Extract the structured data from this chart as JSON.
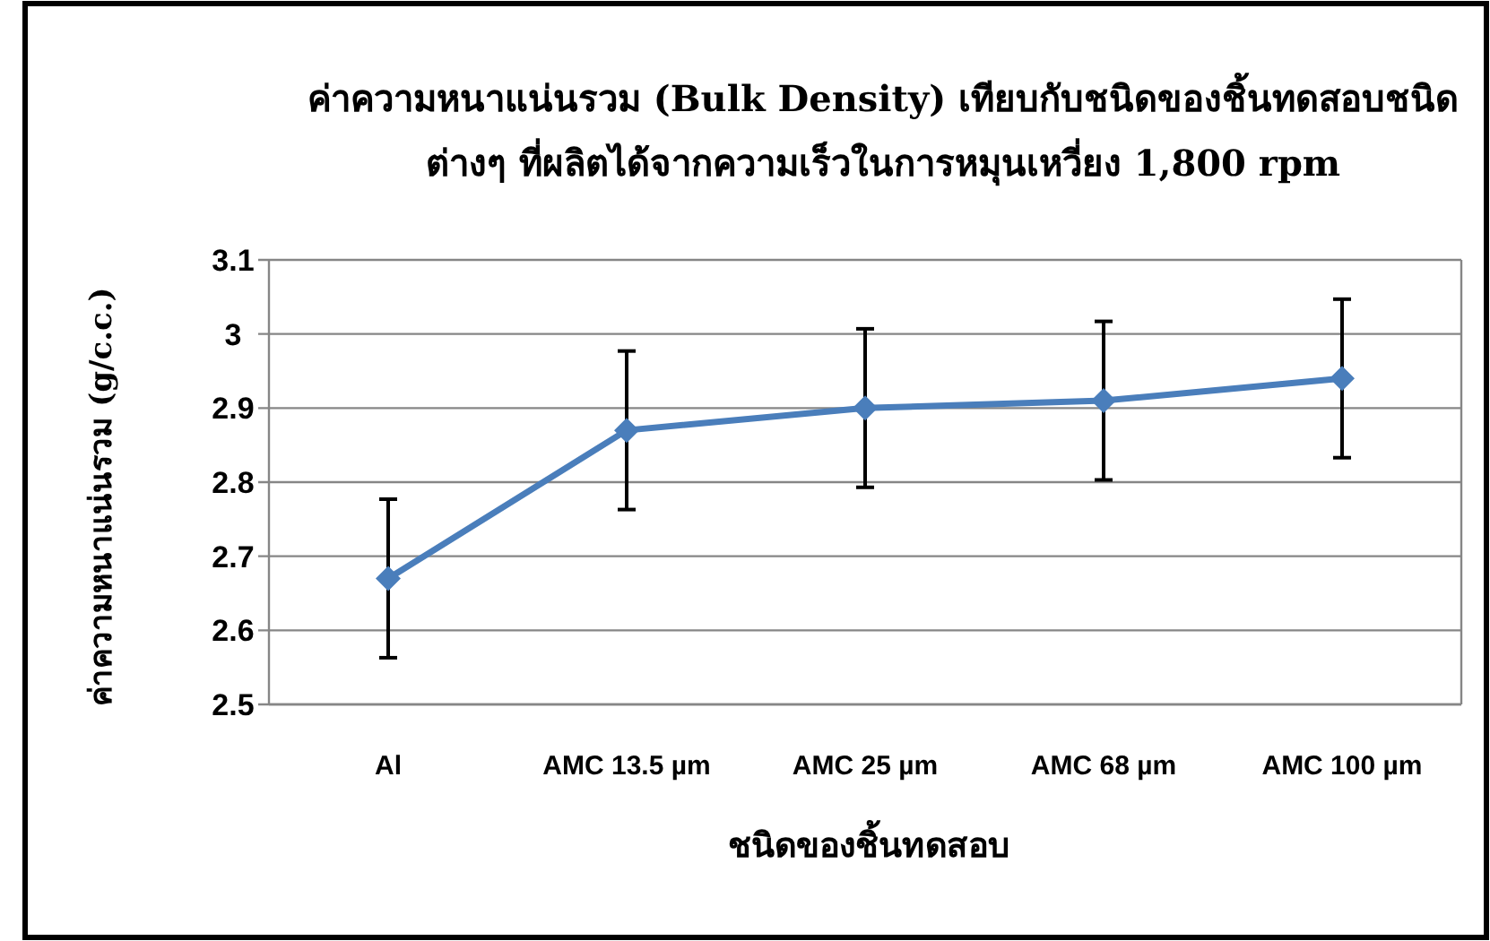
{
  "chart_data": {
    "type": "line",
    "title": "ค่าความหนาแน่นรวม (Bulk Density) เทียบกับชนิดของชิ้นทดสอบชนิด\nต่างๆ ที่ผลิตได้จากความเร็วในการหมุนเหวี่ยง 1,800 rpm",
    "xlabel": "ชนิดของชิ้นทดสอบ",
    "ylabel": "ค่าความหนาแน่นรวม (g/c.c.)",
    "categories": [
      "Al",
      "AMC 13.5 µm",
      "AMC 25 µm",
      "AMC 68 µm",
      "AMC 100 µm"
    ],
    "series": [
      {
        "color": "#4a7ebb",
        "values": [
          2.67,
          2.87,
          2.9,
          2.91,
          2.94
        ],
        "errors": [
          0.107,
          0.107,
          0.107,
          0.107,
          0.107
        ]
      }
    ],
    "ylim": [
      2.5,
      3.1
    ],
    "yticks": [
      2.5,
      2.6,
      2.7,
      2.8,
      2.9,
      {
        "value": 3,
        "label": "3"
      },
      3.1
    ],
    "grid": "y",
    "marker": "diamond",
    "line_style": "solid"
  }
}
